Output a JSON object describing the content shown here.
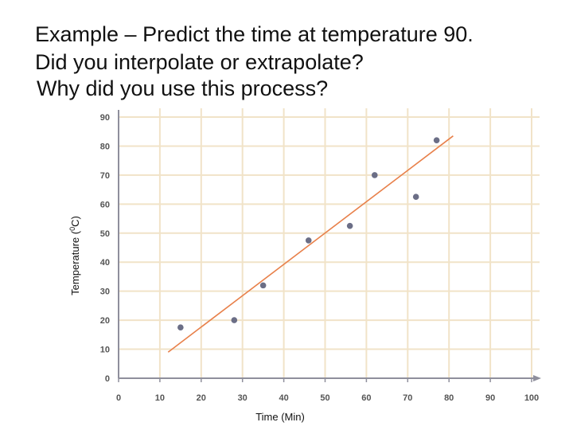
{
  "title": {
    "line1": "Example – Predict the time at temperature 90.",
    "line2": "Did you interpolate or extrapolate?",
    "line3": "Why did you use this process?"
  },
  "colors": {
    "background": "#ffffff",
    "grid": "#f1e3c8",
    "axis": "#8f8f9c",
    "points": "#6b6e86",
    "fit_line": "#e8804a",
    "tick_text": "#555555"
  },
  "chart_data": {
    "type": "scatter",
    "xlabel": "Time (Min)",
    "ylabel_prefix": "Temperature (",
    "ylabel_sup": "0",
    "ylabel_suffix": "C)",
    "xlim": [
      0,
      100
    ],
    "ylim": [
      0,
      90
    ],
    "x_ticks": [
      0,
      10,
      20,
      30,
      40,
      50,
      60,
      70,
      80,
      90,
      100
    ],
    "y_ticks": [
      0,
      10,
      20,
      30,
      40,
      50,
      60,
      70,
      80,
      90
    ],
    "grid": true,
    "points": [
      {
        "x": 15,
        "y": 17.5
      },
      {
        "x": 28,
        "y": 20
      },
      {
        "x": 35,
        "y": 32
      },
      {
        "x": 46,
        "y": 47.5
      },
      {
        "x": 56,
        "y": 52.5
      },
      {
        "x": 62,
        "y": 70
      },
      {
        "x": 72,
        "y": 62.5
      },
      {
        "x": 77,
        "y": 82
      }
    ],
    "trend_line": {
      "x1": 12,
      "y1": 9,
      "x2": 81,
      "y2": 83.5
    }
  }
}
